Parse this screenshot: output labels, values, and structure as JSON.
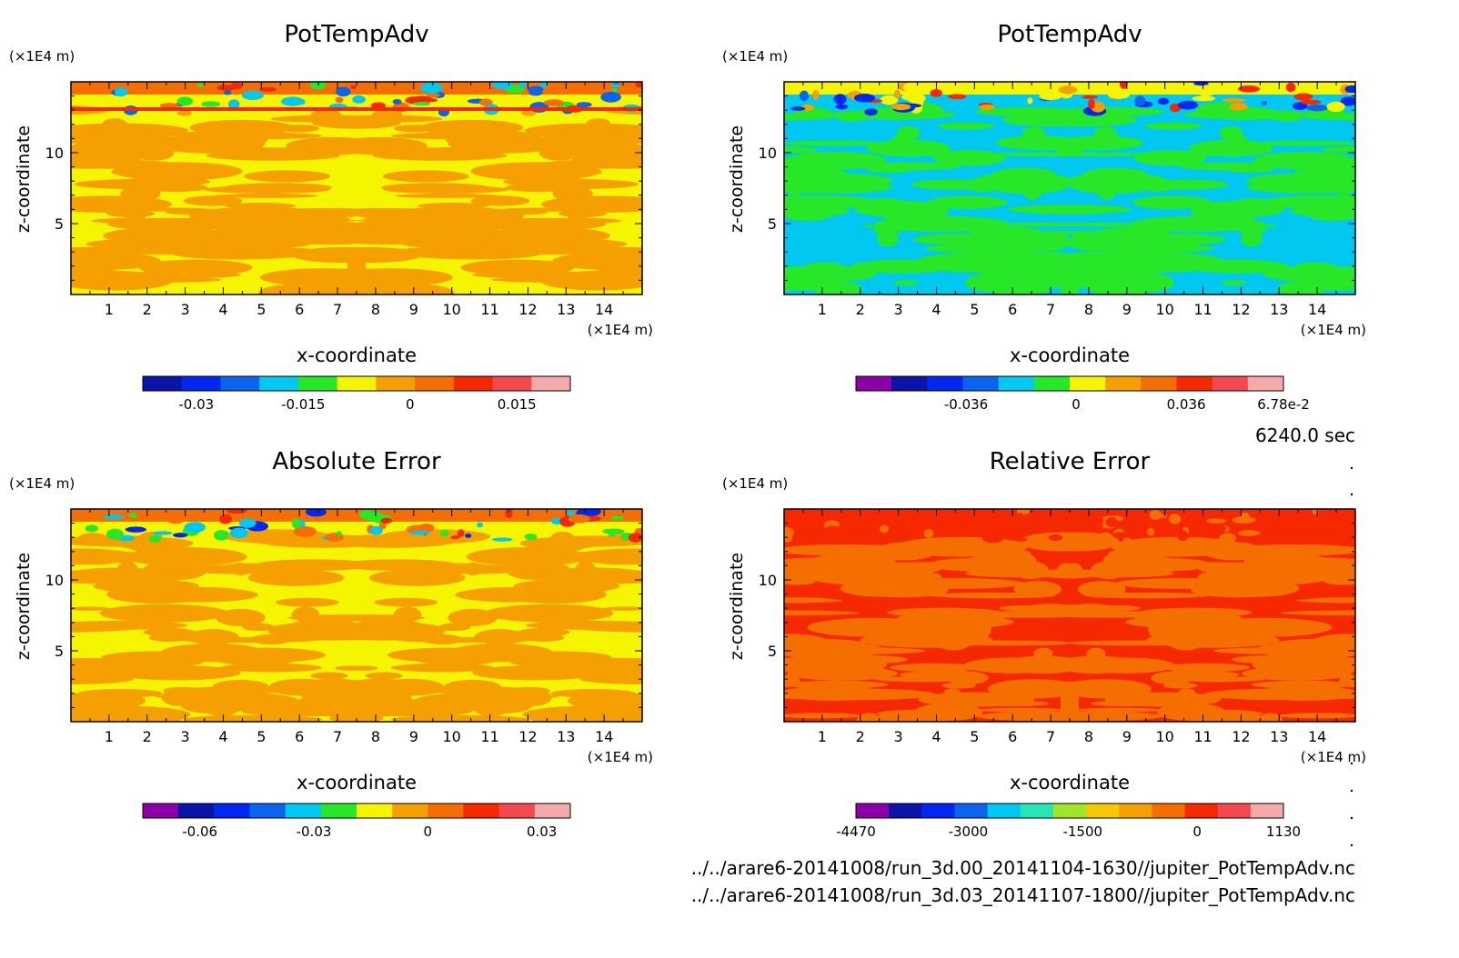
{
  "time_label": "6240.0 sec",
  "files": [
    "../../arare6-20141008/run_3d.00_20141104-1630//jupiter_PotTempAdv.nc",
    "../../arare6-20141008/run_3d.03_20141107-1800//jupiter_PotTempAdv.nc"
  ],
  "chart_data": [
    {
      "type": "heatmap",
      "title": "PotTempAdv",
      "xlabel": "x-coordinate",
      "ylabel": "z-coordinate",
      "x_unit": "(×1E4 m)",
      "z_unit": "(×1E4 m)",
      "xlim": [
        0,
        15
      ],
      "zlim": [
        0,
        15
      ],
      "x_ticks": [
        "1",
        "2",
        "3",
        "4",
        "5",
        "6",
        "7",
        "8",
        "9",
        "10",
        "11",
        "12",
        "13",
        "14"
      ],
      "z_ticks": [
        "5",
        "10"
      ],
      "colorbar": {
        "colors": [
          "#0a14a8",
          "#0028f0",
          "#0a64f0",
          "#00c8f0",
          "#28e628",
          "#f5f500",
          "#f5a000",
          "#f56e00",
          "#f52800",
          "#f54850",
          "#f5aaaa"
        ],
        "tick_labels": [
          "-0.03",
          "-0.015",
          "0",
          "0.015"
        ],
        "tick_values": [
          -0.03,
          -0.015,
          0,
          0.015
        ],
        "range": [
          -0.0375,
          0.0225
        ]
      },
      "field": {
        "base": "#f5f500",
        "blob": "#f5a000",
        "top": [
          "#f56e00",
          "#f52800",
          "#28e628",
          "#00c8f0",
          "#0a64f0"
        ]
      }
    },
    {
      "type": "heatmap",
      "title": "PotTempAdv",
      "xlabel": "x-coordinate",
      "ylabel": "z-coordinate",
      "x_unit": "(×1E4 m)",
      "z_unit": "(×1E4 m)",
      "xlim": [
        0,
        15
      ],
      "zlim": [
        0,
        15
      ],
      "x_ticks": [
        "1",
        "2",
        "3",
        "4",
        "5",
        "6",
        "7",
        "8",
        "9",
        "10",
        "11",
        "12",
        "13",
        "14"
      ],
      "z_ticks": [
        "5",
        "10"
      ],
      "colorbar": {
        "colors": [
          "#8c00a8",
          "#0a14a8",
          "#0028f0",
          "#0a64f0",
          "#00c8f0",
          "#28e628",
          "#f5f500",
          "#f5a000",
          "#f56e00",
          "#f52800",
          "#f54850",
          "#f5aaaa"
        ],
        "tick_labels": [
          "-0.036",
          "0",
          "0.036",
          "6.78e-2"
        ],
        "tick_values": [
          -0.036,
          0,
          0.036,
          0.0678
        ],
        "range": [
          -0.072,
          0.0678
        ]
      },
      "field": {
        "base": "#00c8f0",
        "blob": "#28e628",
        "top": [
          "#f5f500",
          "#f5a000",
          "#f52800",
          "#0a64f0",
          "#0028f0"
        ]
      }
    },
    {
      "type": "heatmap",
      "title": "Absolute Error",
      "xlabel": "x-coordinate",
      "ylabel": "z-coordinate",
      "x_unit": "(×1E4 m)",
      "z_unit": "(×1E4 m)",
      "xlim": [
        0,
        15
      ],
      "zlim": [
        0,
        15
      ],
      "x_ticks": [
        "1",
        "2",
        "3",
        "4",
        "5",
        "6",
        "7",
        "8",
        "9",
        "10",
        "11",
        "12",
        "13",
        "14"
      ],
      "z_ticks": [
        "5",
        "10"
      ],
      "colorbar": {
        "colors": [
          "#8c00a8",
          "#0a14a8",
          "#0028f0",
          "#0a64f0",
          "#00c8f0",
          "#28e628",
          "#f5f500",
          "#f5a000",
          "#f56e00",
          "#f52800",
          "#f54850",
          "#f5aaaa"
        ],
        "tick_labels": [
          "-0.06",
          "-0.03",
          "0",
          "0.03"
        ],
        "tick_values": [
          -0.06,
          -0.03,
          0,
          0.03
        ],
        "range": [
          -0.075,
          0.0375
        ]
      },
      "field": {
        "base": "#f5f500",
        "blob": "#f5a000",
        "top": [
          "#f56e00",
          "#f52800",
          "#28e628",
          "#00c8f0",
          "#0028f0"
        ]
      }
    },
    {
      "type": "heatmap",
      "title": "Relative Error",
      "xlabel": "x-coordinate",
      "ylabel": "z-coordinate",
      "x_unit": "(×1E4 m)",
      "z_unit": "(×1E4 m)",
      "xlim": [
        0,
        15
      ],
      "zlim": [
        0,
        15
      ],
      "x_ticks": [
        "1",
        "2",
        "3",
        "4",
        "5",
        "6",
        "7",
        "8",
        "9",
        "10",
        "11",
        "12",
        "13",
        "14"
      ],
      "z_ticks": [
        "5",
        "10"
      ],
      "colorbar": {
        "colors": [
          "#8c00a8",
          "#0a14a8",
          "#0028f0",
          "#0a64f0",
          "#00c8f0",
          "#28e6b4",
          "#a0e628",
          "#f5c800",
          "#f5a000",
          "#f56e00",
          "#f52800",
          "#f54850",
          "#f5aaaa"
        ],
        "tick_labels": [
          "-4470",
          "-3000",
          "-1500",
          "0",
          "1130"
        ],
        "tick_values": [
          -4470,
          -3000,
          -1500,
          0,
          1130
        ],
        "range": [
          -4470,
          1130
        ]
      },
      "field": {
        "base": "#f52800",
        "blob": "#f56e00",
        "top": [
          "#f52800",
          "#f56e00"
        ]
      }
    }
  ]
}
